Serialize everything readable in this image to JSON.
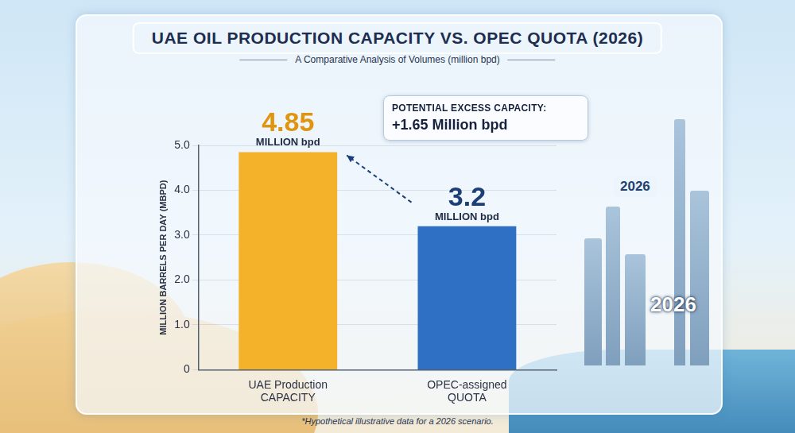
{
  "chart_data": {
    "type": "bar",
    "title": "UAE OIL PRODUCTION CAPACITY VS. OPEC QUOTA (2026)",
    "subtitle": "A Comparative Analysis of Volumes (million bpd)",
    "y_label": "MILLION BARRELS PER DAY (MBPD)",
    "categories": [
      [
        "UAE Production",
        "CAPACITY"
      ],
      [
        "OPEC-assigned",
        "QUOTA"
      ]
    ],
    "values": [
      4.85,
      3.2
    ],
    "value_labels": [
      [
        "4.85",
        "MILLION bpd"
      ],
      [
        "3.2",
        "MILLION bpd"
      ]
    ],
    "colors": [
      "#f4b12a",
      "#2f6fc4"
    ],
    "ylim": [
      0,
      5
    ],
    "yticks": [
      0,
      {
        "value": 1,
        "label": "1.0"
      },
      {
        "value": 2,
        "label": "2.0"
      },
      {
        "value": 3,
        "label": "3.0"
      },
      {
        "value": 4,
        "label": "4.0"
      },
      {
        "value": 5,
        "label": "5.0"
      }
    ],
    "grid": true,
    "data_labels": true,
    "annotation": {
      "title": "POTENTIAL EXCESS CAPACITY:",
      "text": "+1.65 Million bpd"
    },
    "badges": [
      "2026",
      "2026"
    ],
    "note": "*Hypothetical illustrative data for a 2026 scenario."
  }
}
